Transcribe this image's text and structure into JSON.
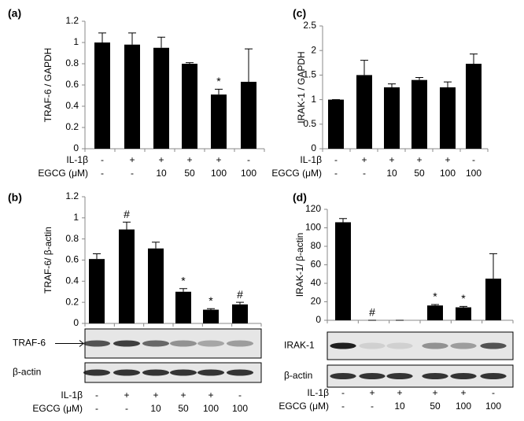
{
  "chart_data": [
    {
      "type": "bar",
      "panel": "(a)",
      "ylabel": "TRAF-6 / GAPDH",
      "color": "#000000",
      "ylim": [
        0,
        1.2
      ],
      "yticks": [
        0,
        0.2,
        0.4,
        0.6,
        0.8,
        1,
        1.2
      ],
      "values": [
        1.0,
        0.98,
        0.95,
        0.8,
        0.51,
        0.63
      ],
      "errors": [
        0.09,
        0.11,
        0.1,
        0.01,
        0.05,
        0.31
      ],
      "markers": [
        null,
        null,
        null,
        null,
        "*",
        null
      ],
      "rows": [
        {
          "label": "IL-1β",
          "values": [
            "-",
            "+",
            "+",
            "+",
            "+",
            "-"
          ]
        },
        {
          "label": "EGCG (μM)",
          "values": [
            "-",
            "-",
            "10",
            "50",
            "100",
            "100"
          ]
        }
      ]
    },
    {
      "type": "bar",
      "panel": "(c)",
      "ylabel": "IRAK-1 / GAPDH",
      "color": "#000000",
      "ylim": [
        0,
        2.5
      ],
      "yticks": [
        0,
        0.5,
        1,
        1.5,
        2,
        2.5
      ],
      "values": [
        1.0,
        1.5,
        1.25,
        1.4,
        1.25,
        1.73
      ],
      "errors": [
        0,
        0.3,
        0.07,
        0.05,
        0.11,
        0.2
      ],
      "markers": [
        null,
        null,
        null,
        null,
        null,
        null
      ],
      "rows": [
        {
          "label": "IL-1β",
          "values": [
            "-",
            "+",
            "+",
            "+",
            "+",
            "-"
          ]
        },
        {
          "label": "EGCG (μM)",
          "values": [
            "-",
            "-",
            "10",
            "50",
            "100",
            "100"
          ]
        }
      ]
    },
    {
      "type": "bar",
      "panel": "(b)",
      "ylabel": "TRAF-6/ β-actin",
      "color": "#000000",
      "ylim": [
        0,
        1.2
      ],
      "yticks": [
        0,
        0.2,
        0.4,
        0.6,
        0.8,
        1,
        1.2
      ],
      "values": [
        0.61,
        0.89,
        0.71,
        0.3,
        0.13,
        0.18
      ],
      "errors": [
        0.05,
        0.07,
        0.06,
        0.03,
        0.01,
        0.02
      ],
      "markers": [
        null,
        "#",
        null,
        "*",
        "*",
        "#"
      ],
      "blots": [
        {
          "label": "TRAF-6"
        },
        {
          "label": "β-actin"
        }
      ],
      "rows": [
        {
          "label": "IL-1β",
          "values": [
            "-",
            "+",
            "+",
            "+",
            "+",
            "-"
          ]
        },
        {
          "label": "EGCG (μM)",
          "values": [
            "-",
            "-",
            "10",
            "50",
            "100",
            "100"
          ]
        }
      ]
    },
    {
      "type": "bar",
      "panel": "(d)",
      "ylabel": "IRAK-1/ β-actin",
      "color": "#000000",
      "ylim": [
        0,
        120
      ],
      "yticks": [
        0,
        20,
        40,
        60,
        80,
        100,
        120
      ],
      "values": [
        106,
        0,
        0,
        16,
        14,
        45
      ],
      "errors": [
        4,
        0,
        0,
        1,
        1,
        27
      ],
      "markers": [
        null,
        "#",
        null,
        "*",
        "*",
        null
      ],
      "blots": [
        {
          "label": "IRAK-1"
        },
        {
          "label": "β-actin"
        }
      ],
      "rows": [
        {
          "label": "IL-1β",
          "values": [
            "-",
            "+",
            "+",
            "+",
            "+",
            "-"
          ]
        },
        {
          "label": "EGCG (μM)",
          "values": [
            "-",
            "-",
            "10",
            "50",
            "100",
            "100"
          ]
        }
      ]
    }
  ]
}
